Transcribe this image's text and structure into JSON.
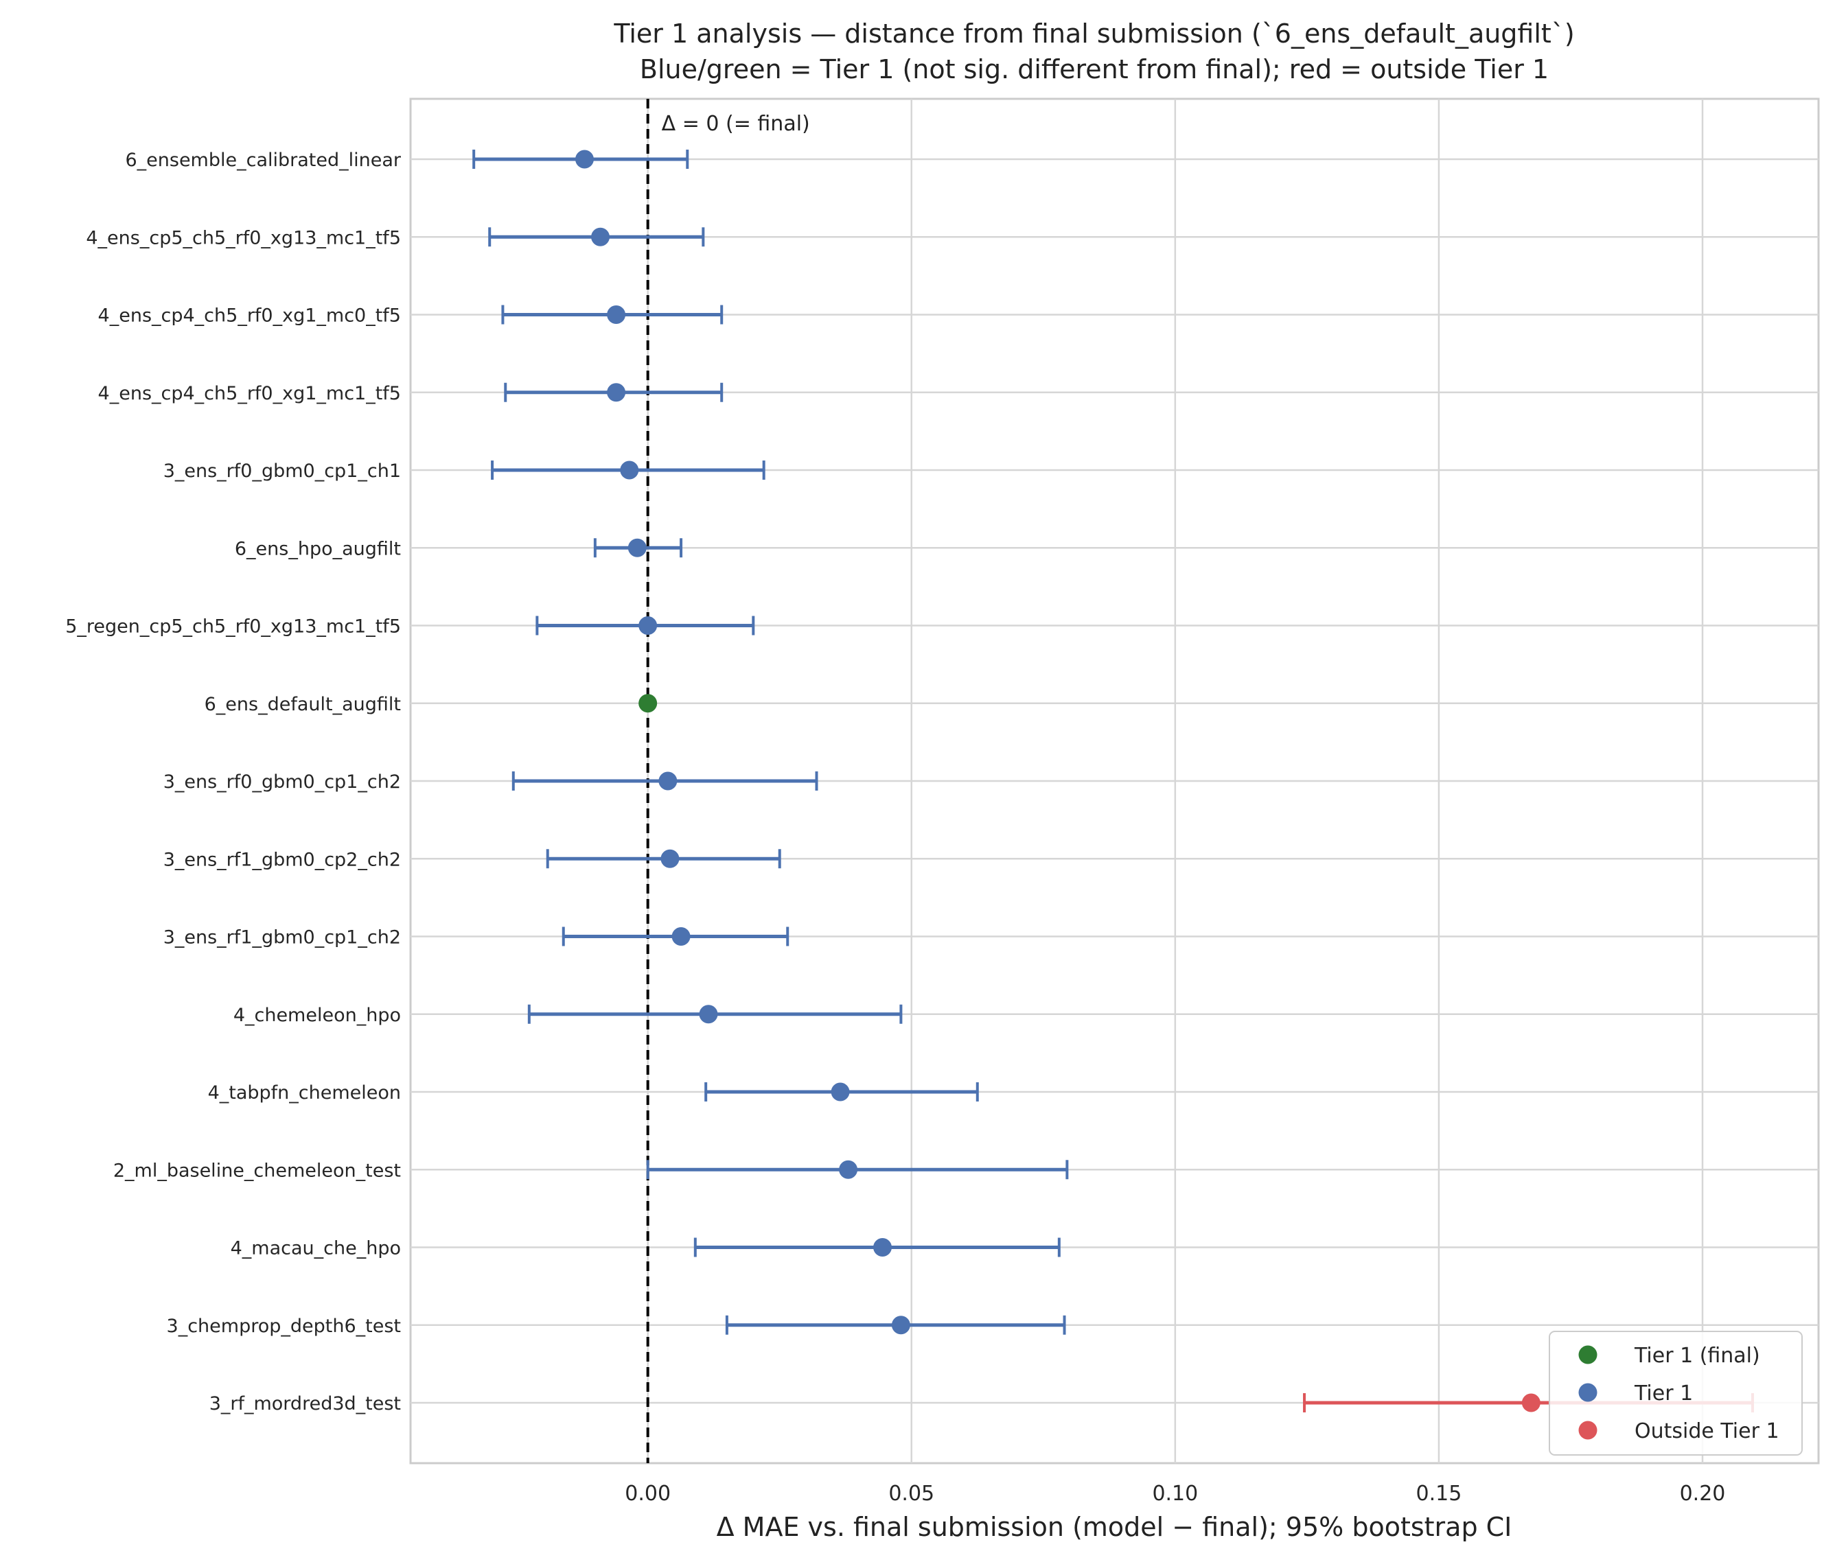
{
  "chart_data": {
    "type": "scatter",
    "title": "Tier 1 analysis — distance from final submission (`6_ens_default_augfilt`)",
    "subtitle": "Blue/green = Tier 1 (not sig. different from final); red = outside Tier 1",
    "xlabel": "Δ MAE vs. final submission  (model − final); 95% bootstrap CI",
    "ylabel": "",
    "xlim": [
      -0.045,
      0.222
    ],
    "xticks": [
      0.0,
      0.05,
      0.1,
      0.15,
      0.2
    ],
    "xtick_labels": [
      "0.00",
      "0.05",
      "0.10",
      "0.15",
      "0.20"
    ],
    "grid": true,
    "reference_line": {
      "x": 0,
      "label": "Δ = 0 (= final)",
      "style": "dashed"
    },
    "legend": {
      "position": "bottom-right",
      "entries": [
        {
          "label": "Tier 1 (final)",
          "color": "#2e7d32"
        },
        {
          "label": "Tier 1",
          "color": "#4c72b0"
        },
        {
          "label": "Outside Tier 1",
          "color": "#dd5559"
        }
      ]
    },
    "points": [
      {
        "name": "6_ensemble_calibrated_linear",
        "x": -0.012,
        "lo": -0.033,
        "hi": 0.0075,
        "tier": "tier1"
      },
      {
        "name": "4_ens_cp5_ch5_rf0_xg13_mc1_tf5",
        "x": -0.009,
        "lo": -0.03,
        "hi": 0.0105,
        "tier": "tier1"
      },
      {
        "name": "4_ens_cp4_ch5_rf0_xg1_mc0_tf5",
        "x": -0.006,
        "lo": -0.0275,
        "hi": 0.014,
        "tier": "tier1"
      },
      {
        "name": "4_ens_cp4_ch5_rf0_xg1_mc1_tf5",
        "x": -0.006,
        "lo": -0.027,
        "hi": 0.014,
        "tier": "tier1"
      },
      {
        "name": "3_ens_rf0_gbm0_cp1_ch1",
        "x": -0.0035,
        "lo": -0.0295,
        "hi": 0.022,
        "tier": "tier1"
      },
      {
        "name": "6_ens_hpo_augfilt",
        "x": -0.002,
        "lo": -0.01,
        "hi": 0.0063,
        "tier": "tier1"
      },
      {
        "name": "5_regen_cp5_ch5_rf0_xg13_mc1_tf5",
        "x": 0.0,
        "lo": -0.021,
        "hi": 0.02,
        "tier": "tier1"
      },
      {
        "name": "6_ens_default_augfilt",
        "x": 0.0,
        "lo": 0.0,
        "hi": 0.0,
        "tier": "final"
      },
      {
        "name": "3_ens_rf0_gbm0_cp1_ch2",
        "x": 0.0038,
        "lo": -0.0255,
        "hi": 0.032,
        "tier": "tier1"
      },
      {
        "name": "3_ens_rf1_gbm0_cp2_ch2",
        "x": 0.0042,
        "lo": -0.019,
        "hi": 0.025,
        "tier": "tier1"
      },
      {
        "name": "3_ens_rf1_gbm0_cp1_ch2",
        "x": 0.0063,
        "lo": -0.016,
        "hi": 0.0265,
        "tier": "tier1"
      },
      {
        "name": "4_chemeleon_hpo",
        "x": 0.0115,
        "lo": -0.0225,
        "hi": 0.048,
        "tier": "tier1"
      },
      {
        "name": "4_tabpfn_chemeleon",
        "x": 0.0365,
        "lo": 0.011,
        "hi": 0.0625,
        "tier": "tier1"
      },
      {
        "name": "2_ml_baseline_chemeleon_test",
        "x": 0.038,
        "lo": 0.0,
        "hi": 0.0795,
        "tier": "tier1"
      },
      {
        "name": "4_macau_che_hpo",
        "x": 0.0445,
        "lo": 0.009,
        "hi": 0.078,
        "tier": "tier1"
      },
      {
        "name": "3_chemprop_depth6_test",
        "x": 0.048,
        "lo": 0.015,
        "hi": 0.079,
        "tier": "tier1"
      },
      {
        "name": "3_rf_mordred3d_test",
        "x": 0.1675,
        "lo": 0.1245,
        "hi": 0.2095,
        "tier": "outside"
      }
    ]
  }
}
